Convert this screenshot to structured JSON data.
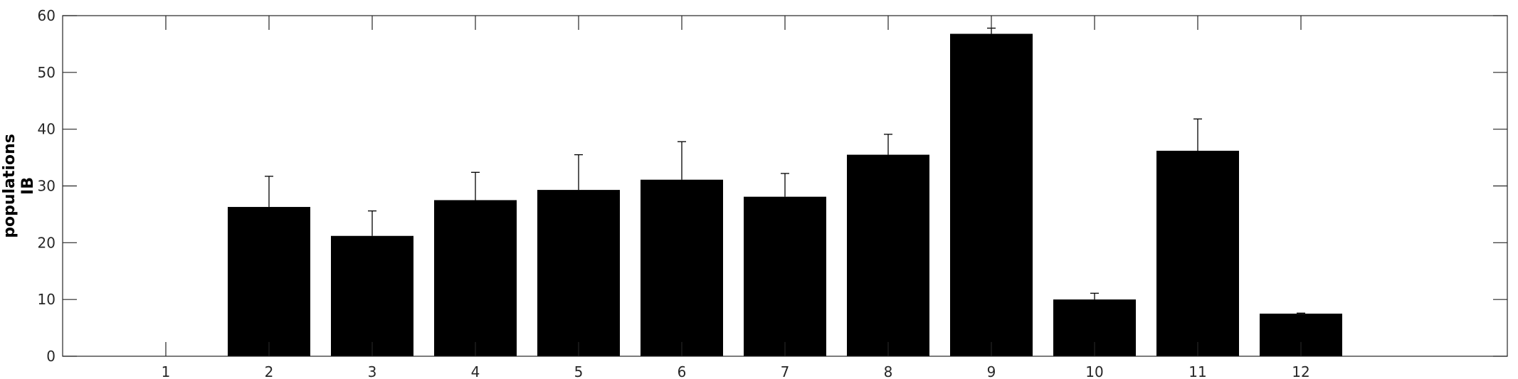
{
  "chart_data": {
    "type": "bar",
    "title": "",
    "xlabel": "",
    "ylabel_lines": [
      "populations",
      "IB"
    ],
    "categories": [
      "1",
      "2",
      "3",
      "4",
      "5",
      "6",
      "7",
      "8",
      "9",
      "10",
      "11",
      "12"
    ],
    "values": [
      0,
      26.3,
      21.2,
      27.5,
      29.3,
      31.1,
      28.1,
      35.5,
      56.8,
      10.0,
      36.2,
      7.5
    ],
    "error_upper": [
      0,
      31.7,
      25.6,
      32.4,
      35.5,
      37.8,
      32.2,
      39.1,
      57.8,
      11.1,
      41.8,
      7.6
    ],
    "xlim": [
      0,
      14
    ],
    "ylim": [
      0,
      60
    ],
    "yticks": [
      0,
      10,
      20,
      30,
      40,
      50,
      60
    ],
    "grid": false,
    "legend": "none",
    "colors": {
      "bar": "#000000",
      "axis": "#262626",
      "background": "#ffffff"
    }
  }
}
